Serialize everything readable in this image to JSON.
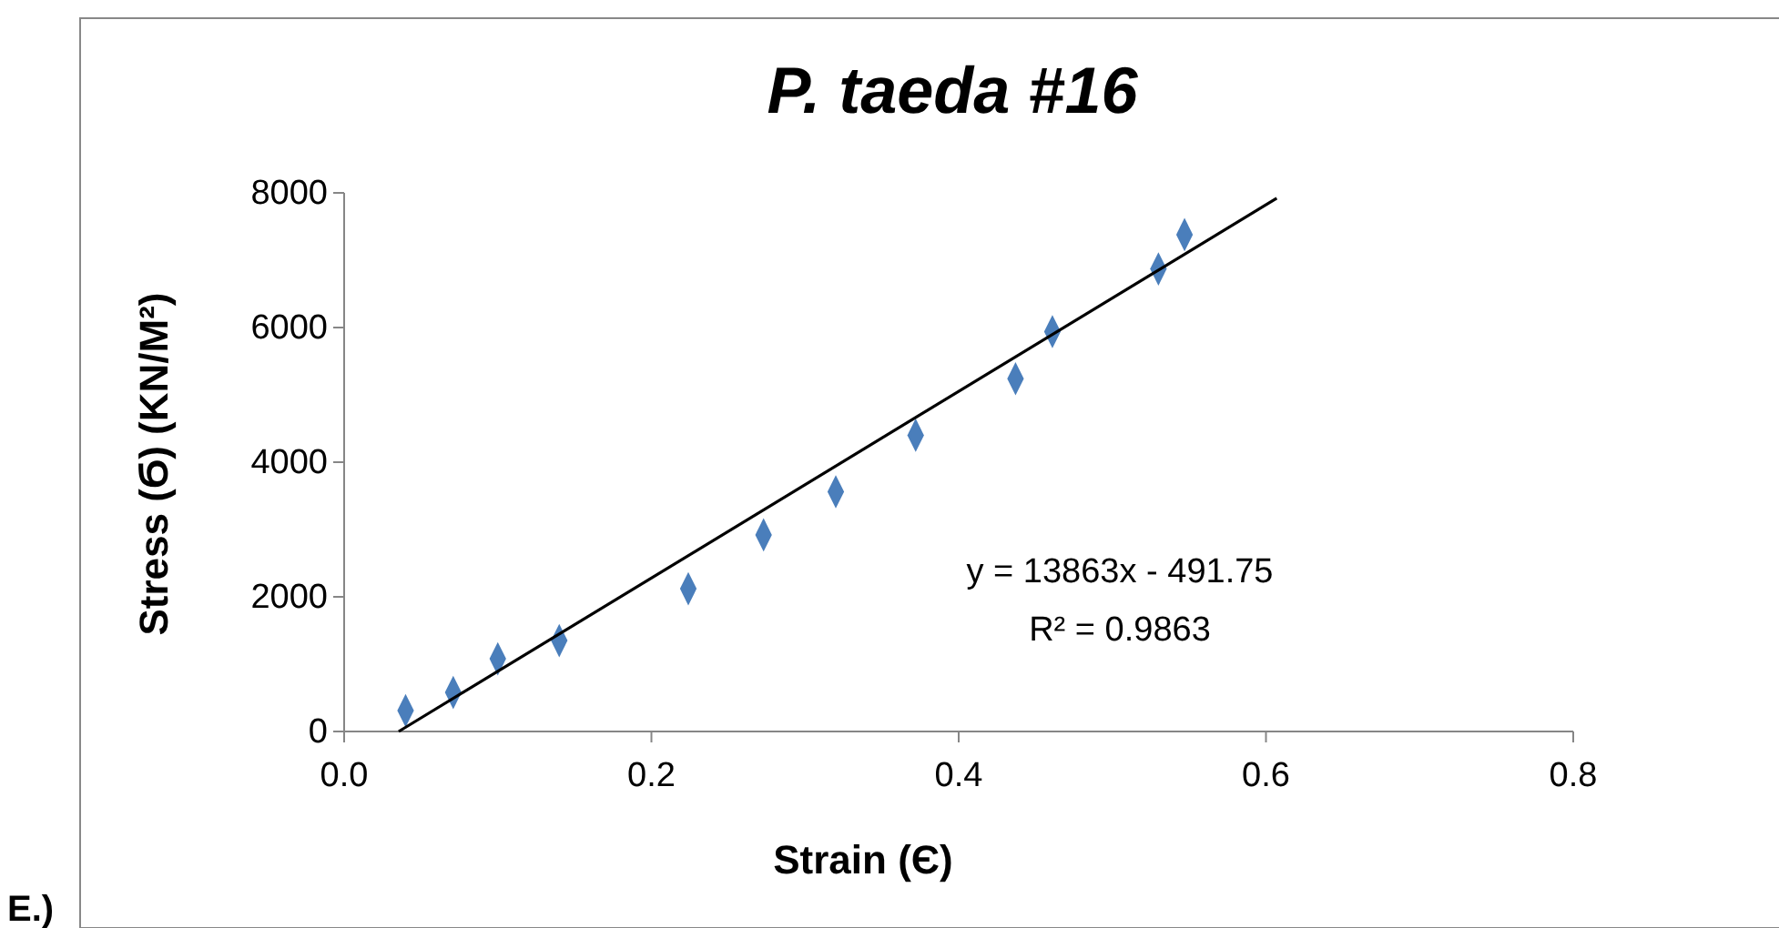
{
  "chart_data": {
    "type": "scatter",
    "title": "P. taeda #16",
    "xlabel": "Strain (Є)",
    "ylabel": "Stress (Ϭ) (KN/M²)",
    "annotations": [
      "y = 13863x - 491.75",
      "R² = 0.9863",
      "E.)"
    ],
    "xlim": [
      0,
      0.8
    ],
    "xticks": [
      {
        "value": 0,
        "label": "0.0"
      },
      {
        "value": 0.2,
        "label": "0.2"
      },
      {
        "value": 0.4,
        "label": "0.4"
      },
      {
        "value": 0.6,
        "label": "0.6"
      },
      {
        "value": 0.8,
        "label": "0.8"
      }
    ],
    "ylim": [
      0,
      8000
    ],
    "yticks": [
      0,
      2000,
      4000,
      6000,
      8000
    ],
    "grid": false,
    "series": [
      {
        "color": "#4a7ebb",
        "marker": "diamond",
        "x": [
          0.04,
          0.071,
          0.1,
          0.14,
          0.224,
          0.273,
          0.32,
          0.372,
          0.437,
          0.461,
          0.53,
          0.547
        ],
        "values": [
          310,
          580,
          1080,
          1350,
          2120,
          2920,
          3560,
          4400,
          5240,
          5940,
          6870,
          7380
        ]
      },
      {
        "type": "line",
        "color": "#000000",
        "marker": "none",
        "x": [
          0.0355,
          0.607
        ],
        "values": [
          0,
          7920
        ]
      }
    ]
  }
}
